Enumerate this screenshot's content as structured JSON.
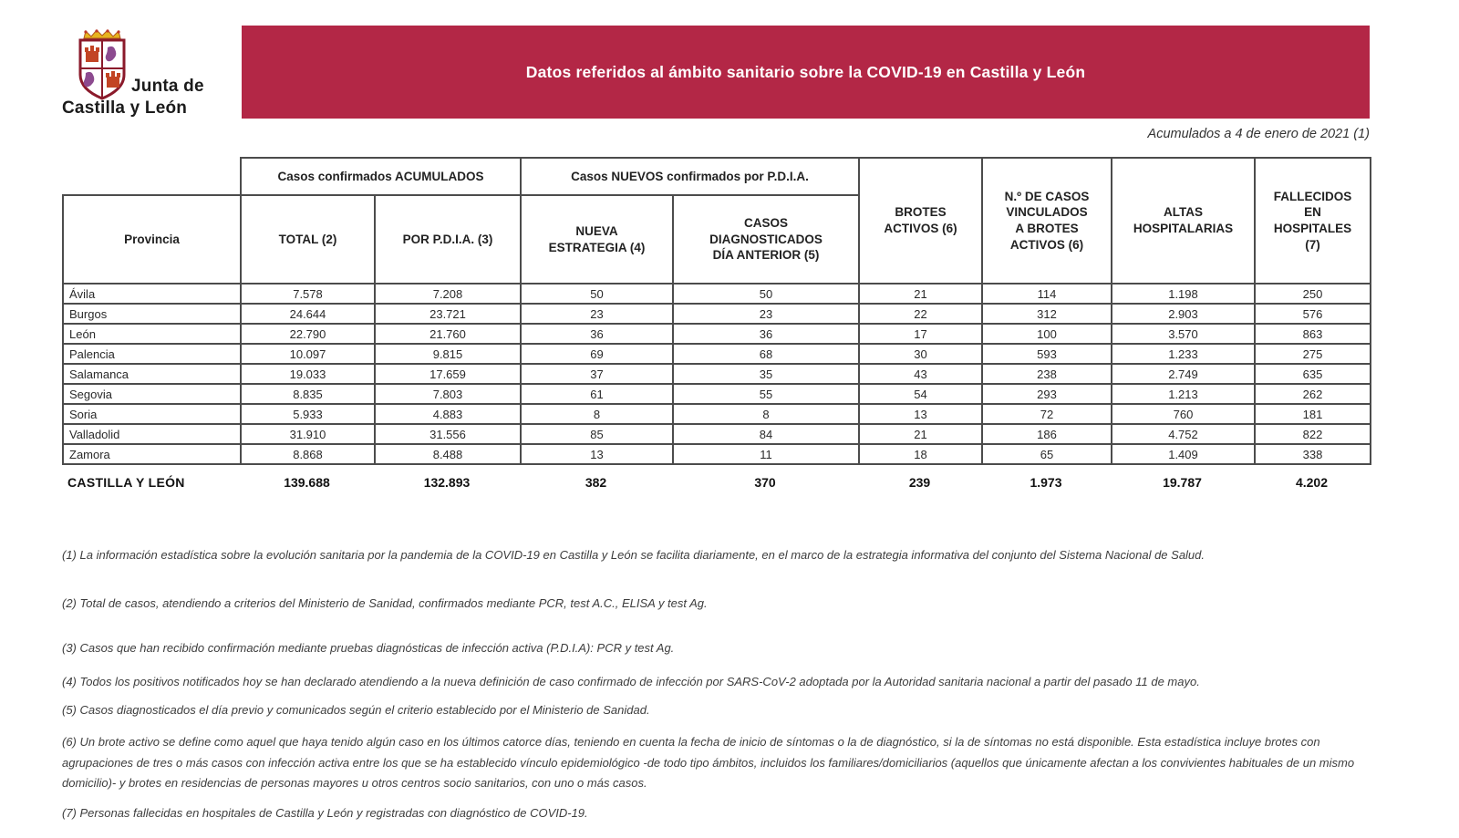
{
  "logo": {
    "line1": "Junta de",
    "line2": "Castilla y León"
  },
  "banner": {
    "title": "Datos referidos al ámbito sanitario sobre la COVID-19 en Castilla y León"
  },
  "date_note": "Acumulados a 4 de enero de 2021 (1)",
  "colors": {
    "banner_bg": "#B32746",
    "banner_text": "#FFFFFF",
    "table_border": "#4C4C4C",
    "shield_castle": "#C24424",
    "shield_lion": "#8C4A8F",
    "crown_gold": "#E6B31E"
  },
  "table": {
    "group_headers": [
      {
        "label": "Casos confirmados ACUMULADOS"
      },
      {
        "label": "Casos NUEVOS confirmados por P.D.I.A."
      }
    ],
    "columns": [
      "Provincia",
      "TOTAL (2)",
      "POR P.D.I.A. (3)",
      "NUEVA\nESTRATEGIA (4)",
      "CASOS\nDIAGNOSTICADOS\nDÍA ANTERIOR (5)",
      "BROTES\nACTIVOS (6)",
      "N.º DE CASOS\nVINCULADOS\nA BROTES\nACTIVOS (6)",
      "ALTAS\nHOSPITALARIAS",
      "FALLECIDOS\nEN\nHOSPITALES\n(7)"
    ],
    "rows": [
      [
        "Ávila",
        "7.578",
        "7.208",
        "50",
        "50",
        "21",
        "114",
        "1.198",
        "250"
      ],
      [
        "Burgos",
        "24.644",
        "23.721",
        "23",
        "23",
        "22",
        "312",
        "2.903",
        "576"
      ],
      [
        "León",
        "22.790",
        "21.760",
        "36",
        "36",
        "17",
        "100",
        "3.570",
        "863"
      ],
      [
        "Palencia",
        "10.097",
        "9.815",
        "69",
        "68",
        "30",
        "593",
        "1.233",
        "275"
      ],
      [
        "Salamanca",
        "19.033",
        "17.659",
        "37",
        "35",
        "43",
        "238",
        "2.749",
        "635"
      ],
      [
        "Segovia",
        "8.835",
        "7.803",
        "61",
        "55",
        "54",
        "293",
        "1.213",
        "262"
      ],
      [
        "Soria",
        "5.933",
        "4.883",
        "8",
        "8",
        "13",
        "72",
        "760",
        "181"
      ],
      [
        "Valladolid",
        "31.910",
        "31.556",
        "85",
        "84",
        "21",
        "186",
        "4.752",
        "822"
      ],
      [
        "Zamora",
        "8.868",
        "8.488",
        "13",
        "11",
        "18",
        "65",
        "1.409",
        "338"
      ]
    ],
    "total_row": [
      "CASTILLA Y LEÓN",
      "139.688",
      "132.893",
      "382",
      "370",
      "239",
      "1.973",
      "19.787",
      "4.202"
    ]
  },
  "footnotes": [
    "(1) La información estadística sobre la evolución sanitaria por la pandemia de la COVID-19 en Castilla y León se facilita diariamente, en el marco de la estrategia informativa del conjunto del Sistema Nacional de Salud.",
    "(2) Total de casos, atendiendo a criterios del Ministerio de Sanidad, confirmados mediante PCR, test A.C., ELISA y test Ag.",
    "(3) Casos que han recibido confirmación mediante pruebas diagnósticas de infección activa (P.D.I.A): PCR y test Ag.",
    "(4) Todos los positivos notificados hoy se han declarado atendiendo a la nueva definición de caso confirmado de infección por SARS-CoV-2 adoptada por la Autoridad sanitaria nacional a partir del pasado 11 de mayo.",
    "(5) Casos diagnosticados el día previo y comunicados según el criterio establecido por el Ministerio de Sanidad.",
    "(6) Un brote activo se define como aquel que haya tenido algún caso en los últimos catorce días, teniendo en cuenta la fecha de inicio de síntomas o la de diagnóstico, si la de síntomas no está disponible. Esta estadística incluye brotes con agrupaciones de tres o más casos con infección activa entre los que se ha establecido vínculo epidemiológico -de todo tipo ámbitos, incluidos los familiares/domiciliarios (aquellos que únicamente afectan a los convivientes habituales de un mismo domicilio)- y brotes en residencias de personas mayores u otros centros socio sanitarios, con uno o más casos.",
    "(7) Personas fallecidas en hospitales de Castilla y León y registradas con diagnóstico de COVID-19."
  ]
}
